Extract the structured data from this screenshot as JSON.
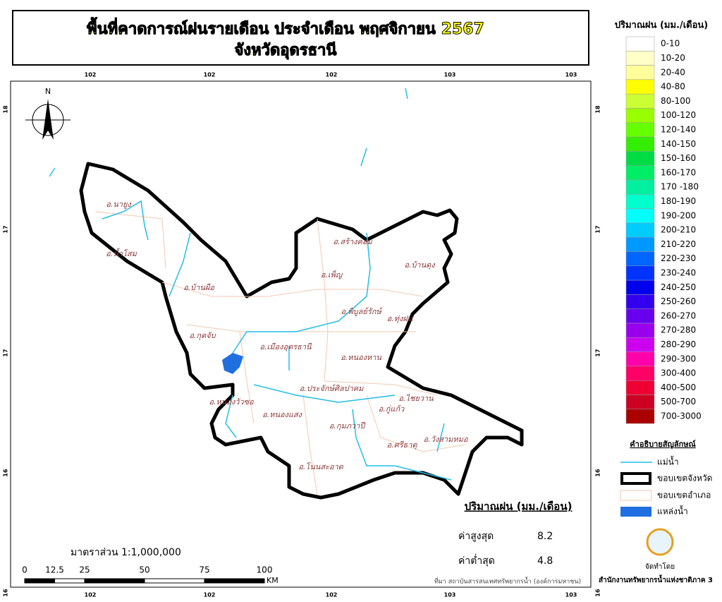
{
  "header": {
    "title_line1": "พื้นที่คาดการณ์ฝนรายเดือน ประจำเดือน พฤศจิกายน 2567",
    "title_line2": "จังหวัดอุดรธานี"
  },
  "coords": {
    "top": [
      102,
      102,
      102,
      103,
      103
    ],
    "bottom": [
      102,
      102,
      102,
      103,
      103
    ],
    "left": [
      18,
      17,
      17,
      16,
      16
    ],
    "right": [
      18,
      17,
      17,
      16,
      16
    ]
  },
  "north": "N",
  "districts": [
    "อ.นายูง",
    "อ.น้ำโสม",
    "อ.บ้านผือ",
    "อ.สร้างคอม",
    "อ.เพ็ญ",
    "อ.บ้านดุง",
    "อ.พิบูลย์รักษ์",
    "อ.ทุ่งฝน",
    "อ.กุดจับ",
    "อ.เมืองอุดรธานี",
    "อ.หนองหาน",
    "อ.ประจักษ์ศิลปาคม",
    "อ.ไชยวาน",
    "อ.หนองวัวซอ",
    "อ.หนองแสง",
    "อ.กุมภวาปี",
    "อ.กู่แก้ว",
    "อ.ศรีธาตุ",
    "อ.วังสามหมอ",
    "อ.โนนสะอาด"
  ],
  "rain_legend": {
    "title": "ปริมาณฝน (มม./เดือน)",
    "classes": [
      {
        "label": "0-10",
        "color": "#ffffff"
      },
      {
        "label": "10-20",
        "color": "#ffffc8"
      },
      {
        "label": "20-40",
        "color": "#ffff99"
      },
      {
        "label": "40-80",
        "color": "#ffff00"
      },
      {
        "label": "80-100",
        "color": "#ccff33"
      },
      {
        "label": "100-120",
        "color": "#99ff00"
      },
      {
        "label": "120-140",
        "color": "#66ff00"
      },
      {
        "label": "140-150",
        "color": "#33ee00"
      },
      {
        "label": "150-160",
        "color": "#00dd44"
      },
      {
        "label": "160-170",
        "color": "#00ee66"
      },
      {
        "label": "170 -180",
        "color": "#00f0a0"
      },
      {
        "label": "180-190",
        "color": "#00ffcc"
      },
      {
        "label": "190-200",
        "color": "#00ffff"
      },
      {
        "label": "200-210",
        "color": "#00ccff"
      },
      {
        "label": "210-220",
        "color": "#0099ff"
      },
      {
        "label": "220-230",
        "color": "#0066ff"
      },
      {
        "label": "230-240",
        "color": "#0033ff"
      },
      {
        "label": "240-250",
        "color": "#0000ee"
      },
      {
        "label": "250-260",
        "color": "#3300ee"
      },
      {
        "label": "260-270",
        "color": "#6600ee"
      },
      {
        "label": "270-280",
        "color": "#9900ee"
      },
      {
        "label": "280-290",
        "color": "#cc00ee"
      },
      {
        "label": "290-300",
        "color": "#ff00aa"
      },
      {
        "label": "300-400",
        "color": "#ff0066"
      },
      {
        "label": "400-500",
        "color": "#ee0033"
      },
      {
        "label": "500-700",
        "color": "#cc0022"
      },
      {
        "label": "700-3000",
        "color": "#aa0000"
      }
    ]
  },
  "symbol_legend": {
    "title": "คำอธิบายสัญลักษณ์",
    "river": "แม่น้ำ",
    "province": "ขอบเขตจังหวัด",
    "district": "ขอบเขตอำเภอ",
    "water": "แหล่งน้ำ"
  },
  "stats": {
    "title": "ปริมาณฝน (มม./เดือน)",
    "max_label": "ค่าสูงสุด",
    "max": 8.2,
    "min_label": "ค่าต่ำสุด",
    "min": 4.8
  },
  "scale": {
    "text": "มาตราส่วน 1:1,000,000",
    "ticks": [
      0,
      12.5,
      25,
      50,
      75,
      100
    ],
    "unit": "KM"
  },
  "source": "ที่มา  สถาบันสารสนเทศทรัพยากรน้ำ (องค์การมหาชน)",
  "producer": {
    "label": "จัดทำโดย",
    "name": "สำนักงานทรัพยากรน้ำแห่งชาติภาค 3"
  }
}
